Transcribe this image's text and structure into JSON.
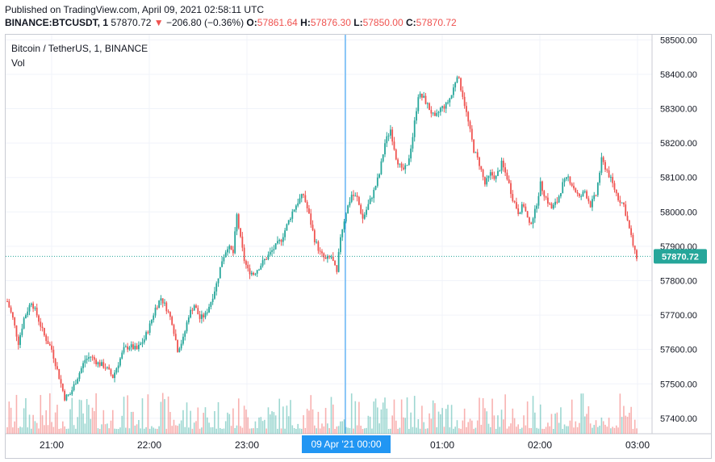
{
  "header": {
    "published": "Published on TradingView.com, April 09, 2021 02:58:11 UTC",
    "symbol": "BINANCE:BTCUSDT, 1",
    "last": "57870.72",
    "arrow": "▼",
    "change": "−206.80 (−0.36%)",
    "o_label": "O:",
    "o_value": "57861.64",
    "h_label": "H:",
    "h_value": "57876.30",
    "l_label": "L:",
    "l_value": "57850.00",
    "c_label": "C:",
    "c_value": "57870.72"
  },
  "legend": {
    "title": "Bitcoin / TetherUS, 1, BINANCE",
    "vol": "Vol"
  },
  "colors": {
    "up": "#26a69a",
    "down": "#ef5350",
    "crosshair": "#2196f3",
    "last_price": "#26a69a",
    "grid": "#f0f3fa"
  },
  "chart_data": {
    "type": "candlestick",
    "yticks": [
      "58500.00",
      "58400.00",
      "58300.00",
      "58200.00",
      "58100.00",
      "58000.00",
      "57900.00",
      "57800.00",
      "57700.00",
      "57600.00",
      "57500.00",
      "57400.00"
    ],
    "ylim": [
      57355,
      58515
    ],
    "xticks": [
      "21:00",
      "22:00",
      "23:00",
      "00:00",
      "01:00",
      "02:00",
      "03:00"
    ],
    "time_range_min": [
      -5,
      177
    ],
    "last_price_label": "57870.72",
    "last_price": 57870.72,
    "crosshair_label": "09 Apr '21   00:00",
    "crosshair_time_min": 180,
    "price_path": [
      [
        0,
        57740
      ],
      [
        3,
        57690
      ],
      [
        6,
        57620
      ],
      [
        9,
        57690
      ],
      [
        13,
        57740
      ],
      [
        16,
        57700
      ],
      [
        20,
        57640
      ],
      [
        24,
        57600
      ],
      [
        28,
        57520
      ],
      [
        31,
        57460
      ],
      [
        34,
        57470
      ],
      [
        38,
        57520
      ],
      [
        42,
        57570
      ],
      [
        45,
        57580
      ],
      [
        49,
        57560
      ],
      [
        53,
        57550
      ],
      [
        57,
        57520
      ],
      [
        60,
        57560
      ],
      [
        63,
        57600
      ],
      [
        66,
        57610
      ],
      [
        70,
        57600
      ],
      [
        74,
        57630
      ],
      [
        77,
        57670
      ],
      [
        80,
        57720
      ],
      [
        83,
        57750
      ],
      [
        86,
        57720
      ],
      [
        89,
        57680
      ],
      [
        92,
        57600
      ],
      [
        95,
        57630
      ],
      [
        98,
        57700
      ],
      [
        101,
        57730
      ],
      [
        104,
        57690
      ],
      [
        107,
        57700
      ],
      [
        110,
        57740
      ],
      [
        113,
        57790
      ],
      [
        116,
        57860
      ],
      [
        119,
        57900
      ],
      [
        122,
        57880
      ],
      [
        124,
        57990
      ],
      [
        126,
        57920
      ],
      [
        128,
        57860
      ],
      [
        130,
        57830
      ],
      [
        133,
        57820
      ],
      [
        136,
        57840
      ],
      [
        139,
        57860
      ],
      [
        142,
        57880
      ],
      [
        145,
        57900
      ],
      [
        148,
        57920
      ],
      [
        151,
        57960
      ],
      [
        154,
        58000
      ],
      [
        157,
        58030
      ],
      [
        160,
        58050
      ],
      [
        163,
        57990
      ],
      [
        166,
        57920
      ],
      [
        169,
        57880
      ],
      [
        172,
        57860
      ],
      [
        175,
        57870
      ],
      [
        178,
        57820
      ],
      [
        180,
        57930
      ],
      [
        183,
        58000
      ],
      [
        186,
        58050
      ],
      [
        189,
        58040
      ],
      [
        192,
        57980
      ],
      [
        195,
        58020
      ],
      [
        198,
        58060
      ],
      [
        201,
        58110
      ],
      [
        204,
        58200
      ],
      [
        207,
        58240
      ],
      [
        210,
        58160
      ],
      [
        213,
        58120
      ],
      [
        216,
        58130
      ],
      [
        219,
        58220
      ],
      [
        222,
        58340
      ],
      [
        225,
        58330
      ],
      [
        228,
        58300
      ],
      [
        231,
        58270
      ],
      [
        234,
        58300
      ],
      [
        237,
        58310
      ],
      [
        240,
        58340
      ],
      [
        243,
        58400
      ],
      [
        246,
        58340
      ],
      [
        249,
        58260
      ],
      [
        252,
        58180
      ],
      [
        255,
        58140
      ],
      [
        258,
        58080
      ],
      [
        261,
        58110
      ],
      [
        264,
        58100
      ],
      [
        267,
        58140
      ],
      [
        270,
        58100
      ],
      [
        273,
        58040
      ],
      [
        276,
        58000
      ],
      [
        279,
        58020
      ],
      [
        282,
        57960
      ],
      [
        285,
        58000
      ],
      [
        288,
        58080
      ],
      [
        291,
        58040
      ],
      [
        294,
        58010
      ],
      [
        297,
        58030
      ],
      [
        300,
        58080
      ],
      [
        303,
        58100
      ],
      [
        306,
        58070
      ],
      [
        309,
        58040
      ],
      [
        312,
        58060
      ],
      [
        315,
        58020
      ],
      [
        318,
        58050
      ],
      [
        321,
        58150
      ],
      [
        324,
        58120
      ],
      [
        327,
        58080
      ],
      [
        330,
        58040
      ],
      [
        333,
        58020
      ],
      [
        336,
        57950
      ],
      [
        339,
        57880
      ],
      [
        340,
        57870
      ]
    ],
    "volume_range": [
      57355,
      57655
    ]
  }
}
